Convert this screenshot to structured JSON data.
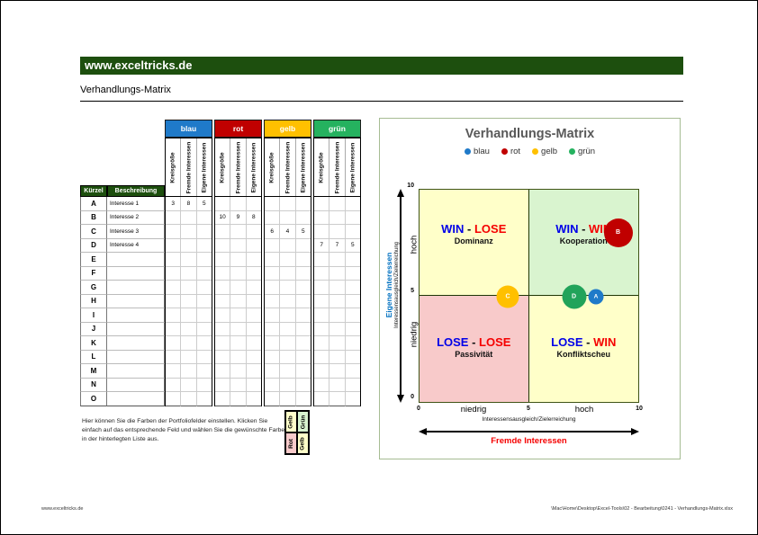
{
  "page": {
    "brand": "www.exceltricks.de",
    "title": "Verhandlungs-Matrix"
  },
  "table": {
    "groups": [
      {
        "label": "blau",
        "color": "#1F7AC9"
      },
      {
        "label": "rot",
        "color": "#C00000"
      },
      {
        "label": "gelb",
        "color": "#FFC000"
      },
      {
        "label": "grün",
        "color": "#25B25F"
      }
    ],
    "sub_columns": [
      "Kreisgröße",
      "Fremde Interessen",
      "Eigene Interessen"
    ],
    "header": {
      "kuerzel": "Kürzel",
      "beschreibung": "Beschreibung"
    },
    "rows": [
      {
        "key": "A",
        "desc": "Interesse 1",
        "cells": [
          "3",
          "8",
          "5",
          "",
          "",
          "",
          "",
          "",
          "",
          "",
          "",
          ""
        ]
      },
      {
        "key": "B",
        "desc": "Interesse 2",
        "cells": [
          "",
          "",
          "",
          "10",
          "9",
          "8",
          "",
          "",
          "",
          "",
          "",
          ""
        ]
      },
      {
        "key": "C",
        "desc": "Interesse 3",
        "cells": [
          "",
          "",
          "",
          "",
          "",
          "",
          "6",
          "4",
          "5",
          "",
          "",
          ""
        ]
      },
      {
        "key": "D",
        "desc": "Interesse 4",
        "cells": [
          "",
          "",
          "",
          "",
          "",
          "",
          "",
          "",
          "",
          "7",
          "7",
          "5"
        ]
      },
      {
        "key": "E",
        "desc": "",
        "cells": [
          "",
          "",
          "",
          "",
          "",
          "",
          "",
          "",
          "",
          "",
          "",
          ""
        ]
      },
      {
        "key": "F",
        "desc": "",
        "cells": [
          "",
          "",
          "",
          "",
          "",
          "",
          "",
          "",
          "",
          "",
          "",
          ""
        ]
      },
      {
        "key": "G",
        "desc": "",
        "cells": [
          "",
          "",
          "",
          "",
          "",
          "",
          "",
          "",
          "",
          "",
          "",
          ""
        ]
      },
      {
        "key": "H",
        "desc": "",
        "cells": [
          "",
          "",
          "",
          "",
          "",
          "",
          "",
          "",
          "",
          "",
          "",
          ""
        ]
      },
      {
        "key": "I",
        "desc": "",
        "cells": [
          "",
          "",
          "",
          "",
          "",
          "",
          "",
          "",
          "",
          "",
          "",
          ""
        ]
      },
      {
        "key": "J",
        "desc": "",
        "cells": [
          "",
          "",
          "",
          "",
          "",
          "",
          "",
          "",
          "",
          "",
          "",
          ""
        ]
      },
      {
        "key": "K",
        "desc": "",
        "cells": [
          "",
          "",
          "",
          "",
          "",
          "",
          "",
          "",
          "",
          "",
          "",
          ""
        ]
      },
      {
        "key": "L",
        "desc": "",
        "cells": [
          "",
          "",
          "",
          "",
          "",
          "",
          "",
          "",
          "",
          "",
          "",
          ""
        ]
      },
      {
        "key": "M",
        "desc": "",
        "cells": [
          "",
          "",
          "",
          "",
          "",
          "",
          "",
          "",
          "",
          "",
          "",
          ""
        ]
      },
      {
        "key": "N",
        "desc": "",
        "cells": [
          "",
          "",
          "",
          "",
          "",
          "",
          "",
          "",
          "",
          "",
          "",
          ""
        ]
      },
      {
        "key": "O",
        "desc": "",
        "cells": [
          "",
          "",
          "",
          "",
          "",
          "",
          "",
          "",
          "",
          "",
          "",
          ""
        ]
      }
    ]
  },
  "note": {
    "text": "Hier können Sie die Farben der Portfoliofelder einstellen. Klicken Sie einfach auf das entsprechende Feld und wählen Sie die gewünschte Farbe in der hinterlegten Liste aus."
  },
  "color_picker": {
    "cells": [
      {
        "label": "Gelb",
        "color": "#FFFFC9"
      },
      {
        "label": "Grün",
        "color": "#D9F4CF"
      },
      {
        "label": "Rot",
        "color": "#F8CACA"
      },
      {
        "label": "Gelb",
        "color": "#FFFFC9"
      }
    ]
  },
  "chart_data": {
    "type": "scatter",
    "title": "Verhandlungs-Matrix",
    "legend": [
      {
        "label": "blau",
        "color": "#1F7AC9"
      },
      {
        "label": "rot",
        "color": "#C00000"
      },
      {
        "label": "gelb",
        "color": "#FFC000"
      },
      {
        "label": "grün",
        "color": "#25B25F"
      }
    ],
    "series": [
      {
        "name": "A",
        "color": "#1F7AC9",
        "x": 8,
        "y": 5,
        "size": 3
      },
      {
        "name": "B",
        "color": "#C00000",
        "x": 9,
        "y": 8,
        "size": 10
      },
      {
        "name": "C",
        "color": "#FFC000",
        "x": 4,
        "y": 5,
        "size": 6
      },
      {
        "name": "D",
        "color": "#21A35A",
        "x": 7,
        "y": 5,
        "size": 7
      }
    ],
    "xlim": [
      0,
      10
    ],
    "ylim": [
      0,
      10
    ],
    "grid": false,
    "legend_position": "top",
    "x_axis": {
      "ticks": [
        "0",
        "5",
        "10"
      ],
      "low": "niedrig",
      "high": "hoch",
      "subtitle": "Interessensausgleich/Zielerreichung",
      "title": "Fremde Interessen",
      "title_color": "#F50000"
    },
    "y_axis": {
      "ticks": [
        "10",
        "5",
        "0"
      ],
      "high": "hoch",
      "low": "niedrig",
      "subtitle": "Interessensausgleich/Zielerreichung",
      "title": "Eigene Interessen",
      "title_color": "#0070C0"
    },
    "quadrants": [
      {
        "position": "top-left",
        "word1": "WIN",
        "word2": "LOSE",
        "name": "Dominanz",
        "bg": "#FFFFC9"
      },
      {
        "position": "top-right",
        "word1": "WIN",
        "word2": "WIN",
        "name": "Kooperation",
        "bg": "#D9F4CF"
      },
      {
        "position": "bottom-left",
        "word1": "LOSE",
        "word2": "LOSE",
        "name": "Passivität",
        "bg": "#F8CACA"
      },
      {
        "position": "bottom-right",
        "word1": "LOSE",
        "word2": "WIN",
        "name": "Konfliktscheu",
        "bg": "#FFFFC9"
      }
    ]
  },
  "footer": {
    "left": "www.exceltricks.de",
    "right": "\\Mac\\Home\\Desktop\\Excel-Tools\\02 - Bearbeitung\\0241 - Verhandlungs-Matrix.xlsx"
  }
}
